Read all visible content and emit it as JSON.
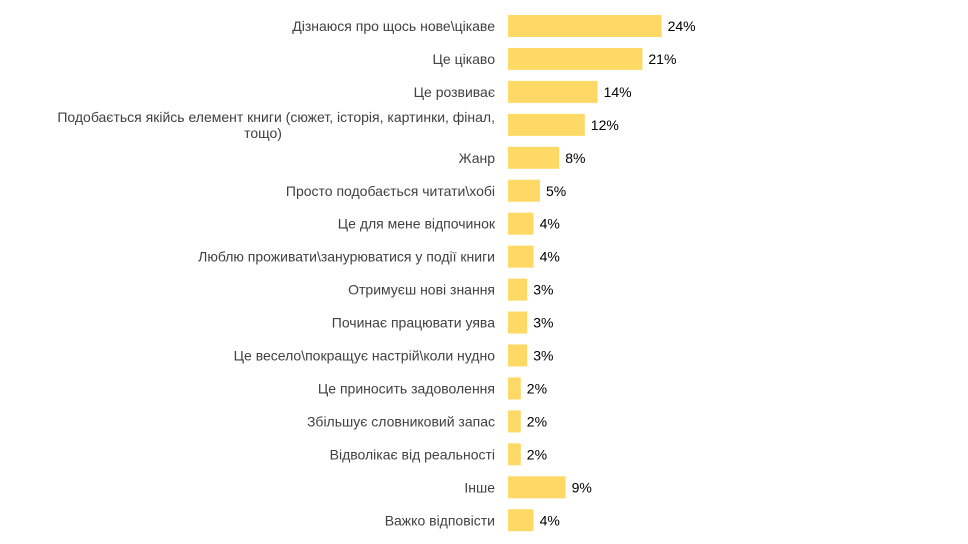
{
  "chart_data": {
    "type": "bar",
    "orientation": "horizontal",
    "categories": [
      "Дізнаюся про щось нове\\цікаве",
      "Це цікаво",
      "Це розвиває",
      "Подобається якійсь елемент книги (сюжет, історія, картинки, фінал, тощо)",
      "Жанр",
      "Просто подобається читати\\хобі",
      "Це для мене відпочинок",
      "Люблю проживати\\занурюватися  у події книги",
      "Отримуєш нові знання",
      "Починає працювати уява",
      "Це весело\\покращує настрій\\коли нудно",
      "Це приносить задоволення",
      "Збільшує словниковий запас",
      "Відволікає від реальності",
      "Інше",
      "Важко відповісти"
    ],
    "values": [
      24,
      21,
      14,
      12,
      8,
      5,
      4,
      4,
      3,
      3,
      3,
      2,
      2,
      2,
      9,
      4
    ],
    "value_labels": [
      "24%",
      "21%",
      "14%",
      "12%",
      "8%",
      "5%",
      "4%",
      "4%",
      "3%",
      "3%",
      "3%",
      "2%",
      "2%",
      "2%",
      "9%",
      "4%"
    ],
    "bar_color": "#FFD966",
    "grid": false,
    "legend": "none"
  }
}
